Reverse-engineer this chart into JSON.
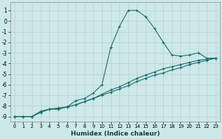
{
  "xlabel": "Humidex (Indice chaleur)",
  "xlim": [
    -0.5,
    23.5
  ],
  "ylim": [
    -9.5,
    1.8
  ],
  "yticks": [
    1,
    0,
    -1,
    -2,
    -3,
    -4,
    -5,
    -6,
    -7,
    -8,
    -9
  ],
  "xticks": [
    0,
    1,
    2,
    3,
    4,
    5,
    6,
    7,
    8,
    9,
    10,
    11,
    12,
    13,
    14,
    15,
    16,
    17,
    18,
    19,
    20,
    21,
    22,
    23
  ],
  "bg_color": "#cce8e8",
  "grid_color": "#b8d0d0",
  "line_color": "#1a6b6b",
  "lines": [
    {
      "x": [
        0,
        1,
        2,
        3,
        4,
        5,
        6,
        7,
        8,
        9,
        10,
        11,
        12,
        13,
        14,
        15,
        16,
        17,
        18,
        19,
        20,
        21,
        22,
        23
      ],
      "y": [
        -9,
        -9,
        -9,
        -8.5,
        -8.3,
        -8.2,
        -8.1,
        -7.5,
        -7.3,
        -6.8,
        -6.0,
        -2.5,
        -0.5,
        1.0,
        1.0,
        0.4,
        -0.7,
        -2.0,
        -3.2,
        -3.3,
        -3.2,
        -3.0,
        -3.5,
        -3.5
      ]
    },
    {
      "x": [
        0,
        1,
        2,
        3,
        4,
        5,
        6,
        7,
        8,
        9,
        10,
        11,
        12,
        13,
        14,
        15,
        16,
        17,
        18,
        19,
        20,
        21,
        22,
        23
      ],
      "y": [
        -9,
        -9,
        -9,
        -8.6,
        -8.3,
        -8.3,
        -8.1,
        -7.9,
        -7.6,
        -7.3,
        -6.9,
        -6.5,
        -6.2,
        -5.8,
        -5.4,
        -5.1,
        -4.8,
        -4.5,
        -4.3,
        -4.1,
        -3.9,
        -3.7,
        -3.6,
        -3.5
      ]
    },
    {
      "x": [
        0,
        1,
        2,
        3,
        4,
        5,
        6,
        7,
        8,
        9,
        10,
        11,
        12,
        13,
        14,
        15,
        16,
        17,
        18,
        19,
        20,
        21,
        22,
        23
      ],
      "y": [
        -9,
        -9,
        -9,
        -8.6,
        -8.3,
        -8.3,
        -8.1,
        -7.9,
        -7.6,
        -7.3,
        -7.0,
        -6.7,
        -6.4,
        -6.1,
        -5.7,
        -5.4,
        -5.1,
        -4.9,
        -4.6,
        -4.4,
        -4.1,
        -3.9,
        -3.7,
        -3.5
      ]
    }
  ]
}
